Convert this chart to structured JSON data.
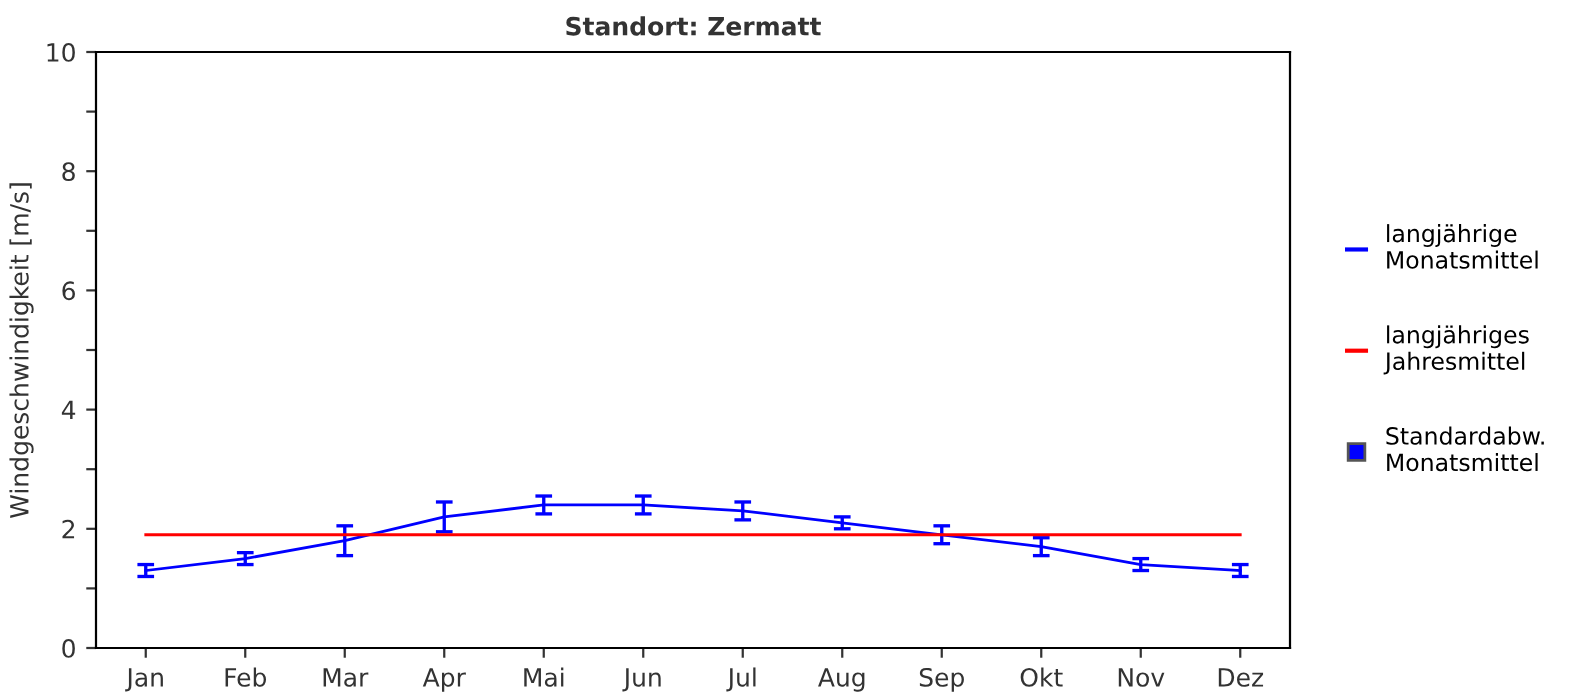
{
  "chart_data": {
    "type": "line",
    "title": "Standort: Zermatt",
    "ylabel": "Windgeschwindigkeit [m/s]",
    "categories": [
      "Jan",
      "Feb",
      "Mar",
      "Apr",
      "Mai",
      "Jun",
      "Jul",
      "Aug",
      "Sep",
      "Okt",
      "Nov",
      "Dez"
    ],
    "series": [
      {
        "name": "langjährige\nMonatsmittel",
        "color": "#0000ff",
        "values": [
          1.3,
          1.5,
          1.8,
          2.2,
          2.4,
          2.4,
          2.3,
          2.1,
          1.9,
          1.7,
          1.4,
          1.3
        ],
        "errors": [
          0.1,
          0.1,
          0.25,
          0.25,
          0.15,
          0.15,
          0.15,
          0.1,
          0.15,
          0.15,
          0.1,
          0.1
        ]
      },
      {
        "name": "langjähriges\nJahresmittel",
        "color": "#ff0000",
        "values": [
          1.9,
          1.9,
          1.9,
          1.9,
          1.9,
          1.9,
          1.9,
          1.9,
          1.9,
          1.9,
          1.9,
          1.9
        ]
      }
    ],
    "annotations": [
      "Standardabw.\nMonatsmittel"
    ],
    "ylim": [
      0,
      10
    ],
    "yticks": [
      0,
      {
        "value": 1,
        "label": null
      },
      2,
      {
        "value": 3,
        "label": null
      },
      4,
      {
        "value": 5,
        "label": null
      },
      6,
      {
        "value": 7,
        "label": null
      },
      8,
      {
        "value": 9,
        "label": null
      },
      10
    ],
    "grid": false,
    "legend": "right",
    "marker": "none",
    "line_style": "solid"
  }
}
